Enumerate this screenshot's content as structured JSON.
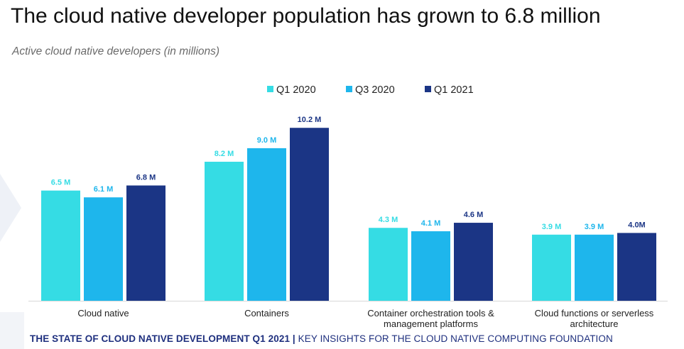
{
  "title": "The cloud native developer population has grown to 6.8 million",
  "subtitle": "Active cloud native developers (in millions)",
  "footer": {
    "part1": "THE STATE OF CLOUD NATIVE DEVELOPMENT Q1 2021",
    "separator": "|",
    "part2": "KEY INSIGHTS FOR THE CLOUD NATIVE COMPUTING FOUNDATION"
  },
  "chart_data": {
    "type": "bar",
    "categories": [
      [
        "Cloud native"
      ],
      [
        "Containers"
      ],
      [
        "Container orchestration tools &",
        "management platforms"
      ],
      [
        "Cloud functions or serverless",
        "architecture"
      ]
    ],
    "series": [
      {
        "name": "Q1 2020",
        "color": "#35dce4",
        "values": [
          6.5,
          8.2,
          4.3,
          3.9
        ],
        "labels": [
          "6.5 M",
          "8.2 M",
          "4.3 M",
          "3.9 M"
        ]
      },
      {
        "name": "Q3 2020",
        "color": "#1eb6ec",
        "values": [
          6.1,
          9.0,
          4.1,
          3.9
        ],
        "labels": [
          "6.1 M",
          "9.0 M",
          "4.1 M",
          "3.9 M"
        ]
      },
      {
        "name": "Q1 2021",
        "color": "#1b3585",
        "values": [
          6.8,
          10.2,
          4.6,
          4.0
        ],
        "labels": [
          "6.8 M",
          "10.2 M",
          "4.6 M",
          "4.0M"
        ]
      }
    ],
    "legend_position": "top-center",
    "grid": false,
    "ylim": [
      0,
      10.2
    ]
  }
}
